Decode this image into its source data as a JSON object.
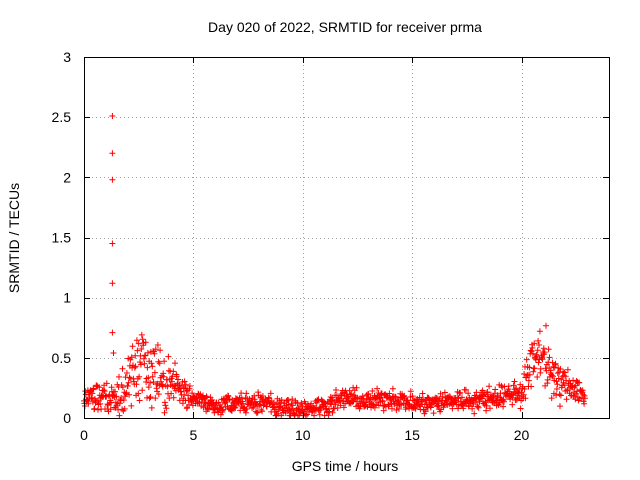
{
  "chart_data": {
    "type": "scatter",
    "title": "Day 020 of 2022, SRMTID for receiver prma",
    "xlabel": "GPS time / hours",
    "ylabel": "SRMTID / TECUs",
    "xlim": [
      0,
      24
    ],
    "ylim": [
      0,
      3
    ],
    "xticks": [
      0,
      5,
      10,
      15,
      20
    ],
    "yticks": [
      0,
      0.5,
      1,
      1.5,
      2,
      2.5,
      3
    ],
    "xtick_labels": [
      "0",
      "5",
      "10",
      "15",
      "20"
    ],
    "ytick_labels": [
      "0",
      "0.5",
      "1",
      "1.5",
      "2",
      "2.5",
      "3"
    ],
    "grid": true,
    "marker": "+",
    "color": "#ff0000",
    "outliers": [
      {
        "x": 1.3,
        "y": 2.51
      },
      {
        "x": 1.3,
        "y": 2.2
      },
      {
        "x": 1.3,
        "y": 1.98
      },
      {
        "x": 1.3,
        "y": 1.45
      },
      {
        "x": 1.3,
        "y": 1.12
      },
      {
        "x": 1.3,
        "y": 0.71
      },
      {
        "x": 1.35,
        "y": 0.54
      }
    ],
    "series": [
      {
        "name": "prma",
        "step_hours": 0.02,
        "x_start": 0.0,
        "x_end": 22.9,
        "profile": [
          {
            "x": 0.0,
            "y": 0.14
          },
          {
            "x": 0.5,
            "y": 0.18
          },
          {
            "x": 1.0,
            "y": 0.15
          },
          {
            "x": 1.5,
            "y": 0.2
          },
          {
            "x": 2.0,
            "y": 0.3
          },
          {
            "x": 2.5,
            "y": 0.45
          },
          {
            "x": 2.8,
            "y": 0.42
          },
          {
            "x": 3.2,
            "y": 0.45
          },
          {
            "x": 3.6,
            "y": 0.3
          },
          {
            "x": 4.3,
            "y": 0.25
          },
          {
            "x": 5.0,
            "y": 0.16
          },
          {
            "x": 6.0,
            "y": 0.1
          },
          {
            "x": 7.0,
            "y": 0.12
          },
          {
            "x": 8.0,
            "y": 0.12
          },
          {
            "x": 9.0,
            "y": 0.09
          },
          {
            "x": 10.0,
            "y": 0.08
          },
          {
            "x": 11.0,
            "y": 0.1
          },
          {
            "x": 12.0,
            "y": 0.17
          },
          {
            "x": 13.0,
            "y": 0.13
          },
          {
            "x": 14.0,
            "y": 0.17
          },
          {
            "x": 15.0,
            "y": 0.12
          },
          {
            "x": 16.0,
            "y": 0.12
          },
          {
            "x": 17.0,
            "y": 0.15
          },
          {
            "x": 18.0,
            "y": 0.15
          },
          {
            "x": 19.0,
            "y": 0.18
          },
          {
            "x": 20.0,
            "y": 0.22
          },
          {
            "x": 20.6,
            "y": 0.5
          },
          {
            "x": 21.0,
            "y": 0.55
          },
          {
            "x": 21.5,
            "y": 0.3
          },
          {
            "x": 22.0,
            "y": 0.28
          },
          {
            "x": 22.5,
            "y": 0.25
          },
          {
            "x": 22.9,
            "y": 0.18
          }
        ],
        "spread": [
          {
            "x": 0.0,
            "s": 0.1
          },
          {
            "x": 2.0,
            "s": 0.2
          },
          {
            "x": 2.5,
            "s": 0.35
          },
          {
            "x": 3.5,
            "s": 0.3
          },
          {
            "x": 4.5,
            "s": 0.15
          },
          {
            "x": 5.0,
            "s": 0.08
          },
          {
            "x": 19.5,
            "s": 0.1
          },
          {
            "x": 20.5,
            "s": 0.2
          },
          {
            "x": 21.0,
            "s": 0.25
          },
          {
            "x": 22.0,
            "s": 0.15
          },
          {
            "x": 22.9,
            "s": 0.1
          }
        ]
      }
    ]
  }
}
